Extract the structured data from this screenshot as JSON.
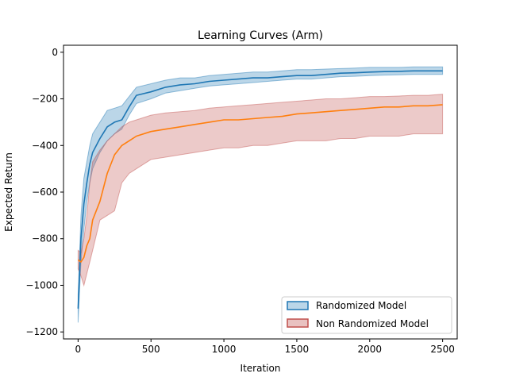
{
  "chart_data": {
    "type": "line",
    "title": "Learning Curves (Arm)",
    "xlabel": "Iteration",
    "ylabel": "Expected Return",
    "xlim": [
      -100,
      2600
    ],
    "ylim": [
      -1230,
      30
    ],
    "xticks": [
      0,
      500,
      1000,
      1500,
      2000,
      2500
    ],
    "yticks": [
      0,
      -200,
      -400,
      -600,
      -800,
      -1000,
      -1200
    ],
    "grid": false,
    "legend_position": "lower-right",
    "series": [
      {
        "name": "Randomized Model",
        "color": "#1f77b4",
        "band_color": "#1f77b4",
        "x": [
          0,
          20,
          40,
          60,
          80,
          100,
          150,
          200,
          250,
          300,
          350,
          400,
          500,
          600,
          700,
          800,
          900,
          1000,
          1100,
          1200,
          1300,
          1400,
          1500,
          1600,
          1700,
          1800,
          1900,
          2000,
          2100,
          2200,
          2300,
          2400,
          2500
        ],
        "values": [
          -1100,
          -800,
          -650,
          -560,
          -480,
          -430,
          -370,
          -320,
          -300,
          -290,
          -235,
          -185,
          -170,
          -150,
          -140,
          -135,
          -125,
          -120,
          -115,
          -110,
          -110,
          -105,
          -100,
          -100,
          -95,
          -90,
          -88,
          -85,
          -83,
          -82,
          -80,
          -80,
          -80
        ],
        "lower": [
          -1160,
          -900,
          -760,
          -640,
          -560,
          -500,
          -430,
          -380,
          -350,
          -330,
          -270,
          -220,
          -200,
          -175,
          -165,
          -155,
          -145,
          -140,
          -135,
          -130,
          -125,
          -120,
          -115,
          -115,
          -110,
          -105,
          -103,
          -100,
          -98,
          -97,
          -95,
          -95,
          -95
        ],
        "upper": [
          -1040,
          -700,
          -540,
          -470,
          -400,
          -350,
          -300,
          -250,
          -240,
          -230,
          -190,
          -150,
          -135,
          -120,
          -110,
          -110,
          -100,
          -95,
          -90,
          -85,
          -85,
          -80,
          -75,
          -75,
          -72,
          -70,
          -68,
          -65,
          -65,
          -65,
          -63,
          -63,
          -63
        ]
      },
      {
        "name": "Non Randomized Model",
        "color": "#ff7f0e",
        "band_color": "#c0504d",
        "x": [
          0,
          20,
          40,
          60,
          80,
          100,
          150,
          200,
          250,
          300,
          350,
          400,
          500,
          600,
          700,
          800,
          900,
          1000,
          1100,
          1200,
          1300,
          1400,
          1500,
          1600,
          1700,
          1800,
          1900,
          2000,
          2100,
          2200,
          2300,
          2400,
          2500
        ],
        "values": [
          -890,
          -900,
          -880,
          -830,
          -800,
          -720,
          -640,
          -520,
          -440,
          -400,
          -380,
          -360,
          -340,
          -330,
          -320,
          -310,
          -300,
          -290,
          -290,
          -285,
          -280,
          -275,
          -265,
          -260,
          -255,
          -250,
          -245,
          -240,
          -235,
          -235,
          -230,
          -230,
          -225
        ],
        "lower": [
          -930,
          -960,
          -1000,
          -950,
          -900,
          -850,
          -720,
          -700,
          -680,
          -560,
          -520,
          -500,
          -460,
          -450,
          -440,
          -430,
          -420,
          -410,
          -410,
          -400,
          -400,
          -390,
          -380,
          -380,
          -380,
          -370,
          -370,
          -360,
          -360,
          -360,
          -350,
          -350,
          -350
        ],
        "upper": [
          -850,
          -860,
          -800,
          -700,
          -560,
          -470,
          -420,
          -380,
          -350,
          -320,
          -300,
          -290,
          -270,
          -260,
          -255,
          -250,
          -240,
          -235,
          -230,
          -225,
          -220,
          -215,
          -210,
          -205,
          -200,
          -200,
          -195,
          -190,
          -190,
          -188,
          -185,
          -185,
          -180
        ]
      }
    ]
  }
}
